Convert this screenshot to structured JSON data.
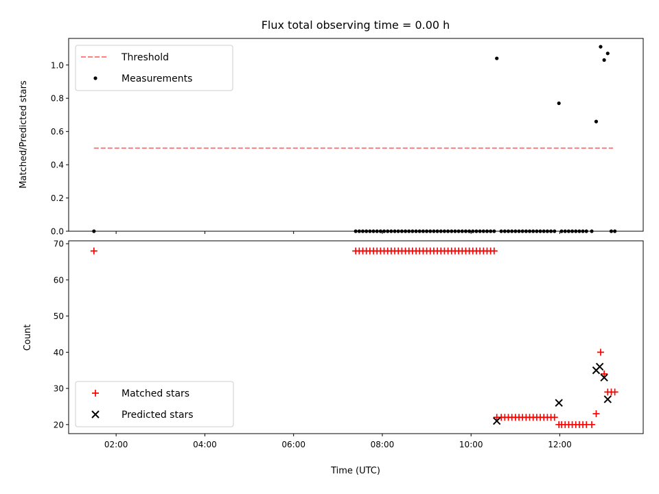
{
  "chart_data": [
    {
      "type": "scatter",
      "title": "Flux total observing time = 0.00 h",
      "ylabel": "Matched/Predicted stars",
      "xlim": [
        0.93,
        13.88
      ],
      "ylim": [
        0.0,
        1.16
      ],
      "yticks": [
        0.0,
        0.2,
        0.4,
        0.6,
        0.8,
        1.0
      ],
      "ytick_labels": [
        "0.0",
        "0.2",
        "0.4",
        "0.6",
        "0.8",
        "1.0"
      ],
      "xticks": [
        2,
        4,
        6,
        8,
        10,
        12
      ],
      "legend": "top-left",
      "threshold": {
        "name": "Threshold",
        "value": 0.5,
        "x": [
          1.5,
          13.2
        ],
        "color": "#ff7f7f"
      },
      "measurements": {
        "name": "Measurements",
        "color": "#000000",
        "points": [
          [
            1.5,
            0.0
          ],
          [
            7.4,
            0.0
          ],
          [
            7.48,
            0.0
          ],
          [
            7.56,
            0.0
          ],
          [
            7.64,
            0.0
          ],
          [
            7.72,
            0.0
          ],
          [
            7.8,
            0.0
          ],
          [
            7.88,
            0.0
          ],
          [
            7.96,
            0.0
          ],
          [
            8.04,
            0.0
          ],
          [
            8.12,
            0.0
          ],
          [
            8.2,
            0.0
          ],
          [
            8.28,
            0.0
          ],
          [
            8.36,
            0.0
          ],
          [
            8.44,
            0.0
          ],
          [
            8.52,
            0.0
          ],
          [
            8.6,
            0.0
          ],
          [
            8.68,
            0.0
          ],
          [
            8.76,
            0.0
          ],
          [
            8.84,
            0.0
          ],
          [
            8.92,
            0.0
          ],
          [
            9.0,
            0.0
          ],
          [
            9.08,
            0.0
          ],
          [
            9.16,
            0.0
          ],
          [
            9.24,
            0.0
          ],
          [
            9.32,
            0.0
          ],
          [
            9.4,
            0.0
          ],
          [
            9.48,
            0.0
          ],
          [
            9.56,
            0.0
          ],
          [
            9.64,
            0.0
          ],
          [
            9.72,
            0.0
          ],
          [
            9.8,
            0.0
          ],
          [
            9.88,
            0.0
          ],
          [
            9.96,
            0.0
          ],
          [
            10.04,
            0.0
          ],
          [
            10.12,
            0.0
          ],
          [
            10.2,
            0.0
          ],
          [
            10.28,
            0.0
          ],
          [
            10.36,
            0.0
          ],
          [
            10.44,
            0.0
          ],
          [
            10.52,
            0.0
          ],
          [
            10.58,
            1.04
          ],
          [
            10.68,
            0.0
          ],
          [
            10.76,
            0.0
          ],
          [
            10.84,
            0.0
          ],
          [
            10.92,
            0.0
          ],
          [
            11.0,
            0.0
          ],
          [
            11.08,
            0.0
          ],
          [
            11.16,
            0.0
          ],
          [
            11.24,
            0.0
          ],
          [
            11.32,
            0.0
          ],
          [
            11.4,
            0.0
          ],
          [
            11.48,
            0.0
          ],
          [
            11.56,
            0.0
          ],
          [
            11.64,
            0.0
          ],
          [
            11.72,
            0.0
          ],
          [
            11.8,
            0.0
          ],
          [
            11.88,
            0.0
          ],
          [
            11.98,
            0.77
          ],
          [
            12.04,
            0.0
          ],
          [
            12.12,
            0.0
          ],
          [
            12.2,
            0.0
          ],
          [
            12.28,
            0.0
          ],
          [
            12.36,
            0.0
          ],
          [
            12.44,
            0.0
          ],
          [
            12.52,
            0.0
          ],
          [
            12.6,
            0.0
          ],
          [
            12.72,
            0.0
          ],
          [
            12.82,
            0.66
          ],
          [
            12.92,
            1.11
          ],
          [
            13.0,
            1.03
          ],
          [
            13.08,
            1.07
          ],
          [
            13.16,
            0.0
          ],
          [
            13.24,
            0.0
          ]
        ]
      }
    },
    {
      "type": "scatter",
      "xlabel": "Time (UTC)",
      "ylabel": "Count",
      "xlim": [
        0.93,
        13.88
      ],
      "ylim": [
        17.5,
        70.8
      ],
      "yticks": [
        20,
        30,
        40,
        50,
        60,
        70
      ],
      "ytick_labels": [
        "20",
        "30",
        "40",
        "50",
        "60",
        "70"
      ],
      "xticks": [
        2,
        4,
        6,
        8,
        10,
        12
      ],
      "xtick_labels": [
        "02:00",
        "04:00",
        "06:00",
        "08:00",
        "10:00",
        "12:00"
      ],
      "legend": "bottom-left",
      "series": [
        {
          "name": "Matched stars",
          "marker": "+",
          "color": "#ff0000",
          "points": [
            [
              1.5,
              68
            ],
            [
              7.4,
              68
            ],
            [
              7.48,
              68
            ],
            [
              7.56,
              68
            ],
            [
              7.64,
              68
            ],
            [
              7.72,
              68
            ],
            [
              7.8,
              68
            ],
            [
              7.88,
              68
            ],
            [
              7.96,
              68
            ],
            [
              8.04,
              68
            ],
            [
              8.12,
              68
            ],
            [
              8.2,
              68
            ],
            [
              8.28,
              68
            ],
            [
              8.36,
              68
            ],
            [
              8.44,
              68
            ],
            [
              8.52,
              68
            ],
            [
              8.6,
              68
            ],
            [
              8.68,
              68
            ],
            [
              8.76,
              68
            ],
            [
              8.84,
              68
            ],
            [
              8.92,
              68
            ],
            [
              9.0,
              68
            ],
            [
              9.08,
              68
            ],
            [
              9.16,
              68
            ],
            [
              9.24,
              68
            ],
            [
              9.32,
              68
            ],
            [
              9.4,
              68
            ],
            [
              9.48,
              68
            ],
            [
              9.56,
              68
            ],
            [
              9.64,
              68
            ],
            [
              9.72,
              68
            ],
            [
              9.8,
              68
            ],
            [
              9.88,
              68
            ],
            [
              9.96,
              68
            ],
            [
              10.04,
              68
            ],
            [
              10.12,
              68
            ],
            [
              10.2,
              68
            ],
            [
              10.28,
              68
            ],
            [
              10.36,
              68
            ],
            [
              10.44,
              68
            ],
            [
              10.52,
              68
            ],
            [
              10.58,
              22
            ],
            [
              10.68,
              22
            ],
            [
              10.76,
              22
            ],
            [
              10.84,
              22
            ],
            [
              10.92,
              22
            ],
            [
              11.0,
              22
            ],
            [
              11.08,
              22
            ],
            [
              11.16,
              22
            ],
            [
              11.24,
              22
            ],
            [
              11.32,
              22
            ],
            [
              11.4,
              22
            ],
            [
              11.48,
              22
            ],
            [
              11.56,
              22
            ],
            [
              11.64,
              22
            ],
            [
              11.72,
              22
            ],
            [
              11.8,
              22
            ],
            [
              11.88,
              22
            ],
            [
              11.98,
              20
            ],
            [
              12.04,
              20
            ],
            [
              12.12,
              20
            ],
            [
              12.2,
              20
            ],
            [
              12.28,
              20
            ],
            [
              12.36,
              20
            ],
            [
              12.44,
              20
            ],
            [
              12.52,
              20
            ],
            [
              12.6,
              20
            ],
            [
              12.72,
              20
            ],
            [
              12.82,
              23
            ],
            [
              12.92,
              40
            ],
            [
              13.0,
              34
            ],
            [
              13.08,
              29
            ],
            [
              13.16,
              29
            ],
            [
              13.24,
              29
            ]
          ]
        },
        {
          "name": "Predicted stars",
          "marker": "x",
          "color": "#000000",
          "points": [
            [
              10.58,
              21
            ],
            [
              11.98,
              26
            ],
            [
              12.82,
              35
            ],
            [
              12.9,
              36
            ],
            [
              13.0,
              33
            ],
            [
              13.08,
              27
            ]
          ]
        }
      ]
    }
  ]
}
